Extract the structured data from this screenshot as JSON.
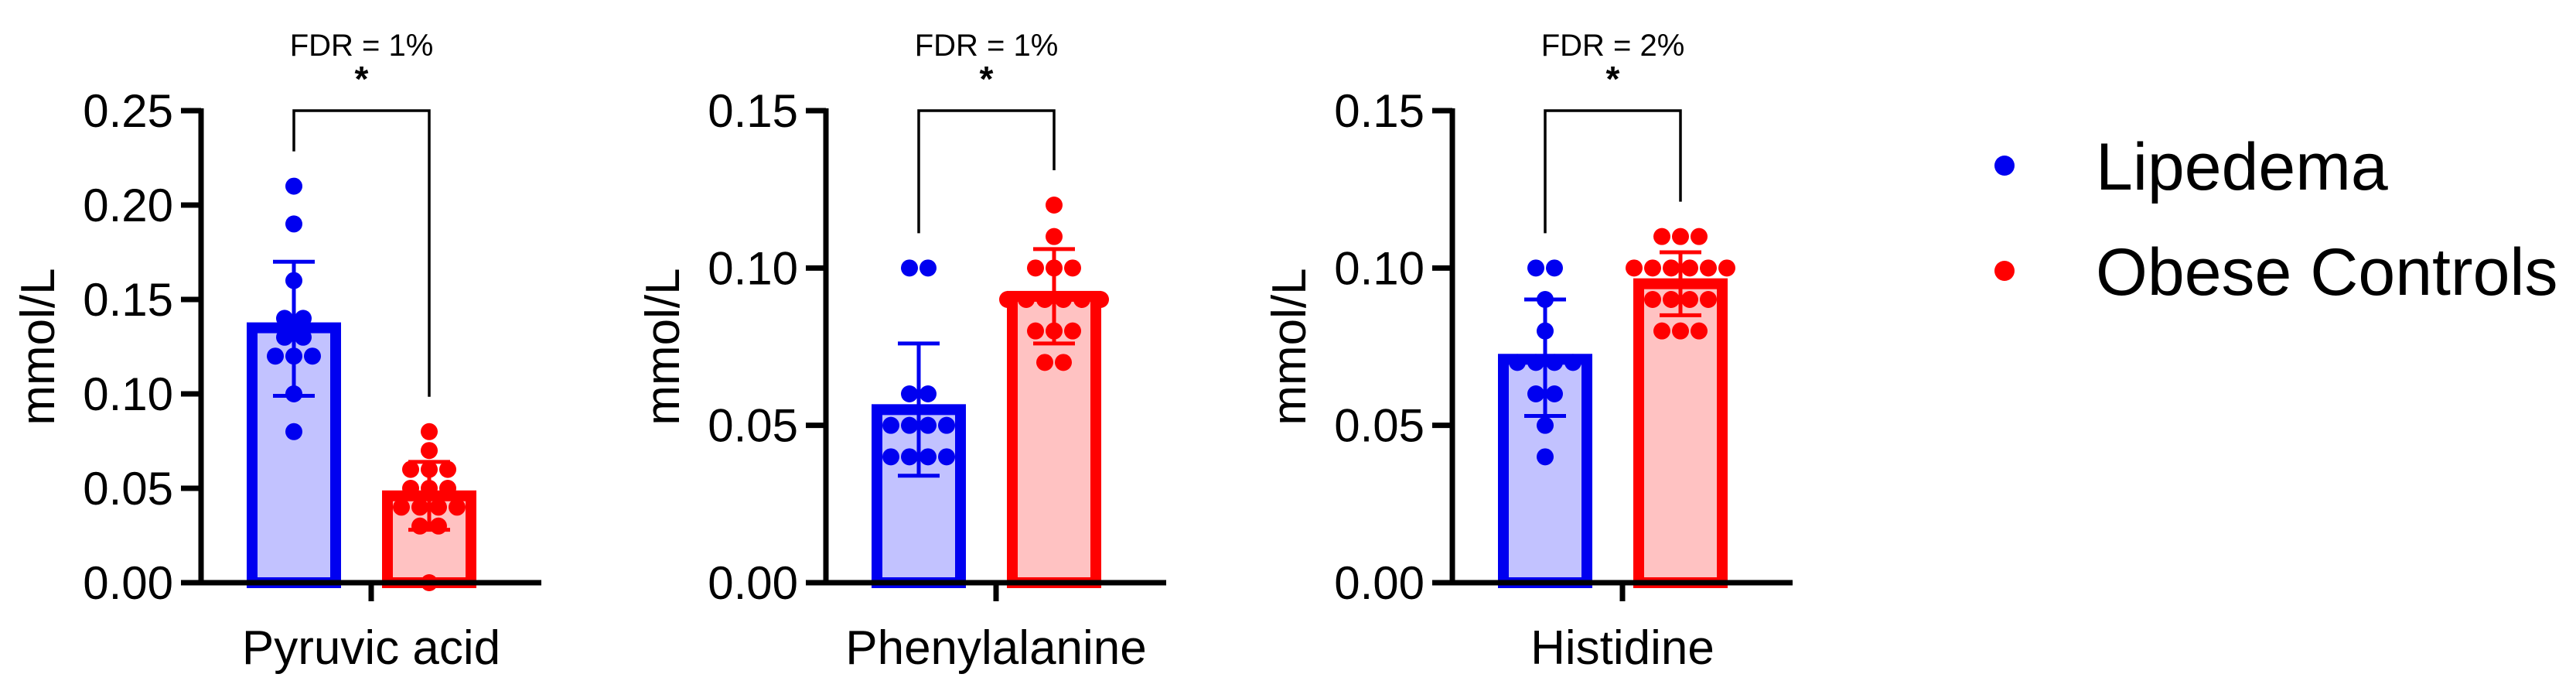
{
  "colors": {
    "lipedema_stroke": "#0000f0",
    "lipedema_fill": "#c2c2ff",
    "obese_stroke": "#ff0000",
    "obese_fill": "#ffc2c2"
  },
  "legend": {
    "items": [
      {
        "label": "Lipedema",
        "color": "#0000f0"
      },
      {
        "label": "Obese Controls",
        "color": "#ff0000"
      }
    ]
  },
  "chart_data": [
    {
      "type": "bar",
      "xlabel": "Pyruvic acid",
      "ylabel": "mmol/L",
      "ylim": [
        0,
        0.25
      ],
      "yticks": [
        "0.00",
        "0.05",
        "0.10",
        "0.15",
        "0.20",
        "0.25"
      ],
      "annotation": {
        "fdr": "FDR = 1%",
        "significance": "*"
      },
      "series": [
        {
          "name": "Lipedema",
          "mean": 0.135,
          "sd_low": 0.099,
          "sd_high": 0.17,
          "points": [
            0.21,
            0.19,
            0.16,
            0.14,
            0.14,
            0.13,
            0.13,
            0.12,
            0.12,
            0.12,
            0.1,
            0.08
          ]
        },
        {
          "name": "Obese Controls",
          "mean": 0.046,
          "sd_low": 0.028,
          "sd_high": 0.064,
          "points": [
            0.08,
            0.07,
            0.06,
            0.06,
            0.06,
            0.05,
            0.05,
            0.05,
            0.04,
            0.04,
            0.04,
            0.04,
            0.03,
            0.03,
            0.0
          ]
        }
      ]
    },
    {
      "type": "bar",
      "xlabel": "Phenylalanine",
      "ylabel": "mmol/L",
      "ylim": [
        0,
        0.15
      ],
      "yticks": [
        "0.00",
        "0.05",
        "0.10",
        "0.15"
      ],
      "annotation": {
        "fdr": "FDR = 1%",
        "significance": "*"
      },
      "series": [
        {
          "name": "Lipedema",
          "mean": 0.055,
          "sd_low": 0.034,
          "sd_high": 0.076,
          "points": [
            0.1,
            0.1,
            0.06,
            0.06,
            0.05,
            0.05,
            0.05,
            0.05,
            0.04,
            0.04,
            0.04,
            0.04
          ]
        },
        {
          "name": "Obese Controls",
          "mean": 0.091,
          "sd_low": 0.076,
          "sd_high": 0.106,
          "points": [
            0.12,
            0.11,
            0.1,
            0.1,
            0.1,
            0.09,
            0.09,
            0.09,
            0.09,
            0.09,
            0.09,
            0.08,
            0.08,
            0.08,
            0.07,
            0.07
          ]
        }
      ]
    },
    {
      "type": "bar",
      "xlabel": "Histidine",
      "ylabel": "mmol/L",
      "ylim": [
        0,
        0.15
      ],
      "yticks": [
        "0.00",
        "0.05",
        "0.10",
        "0.15"
      ],
      "annotation": {
        "fdr": "FDR = 2%",
        "significance": "*"
      },
      "series": [
        {
          "name": "Lipedema",
          "mean": 0.071,
          "sd_low": 0.053,
          "sd_high": 0.09,
          "points": [
            0.1,
            0.1,
            0.09,
            0.08,
            0.07,
            0.07,
            0.07,
            0.07,
            0.06,
            0.06,
            0.05,
            0.04
          ]
        },
        {
          "name": "Obese Controls",
          "mean": 0.095,
          "sd_low": 0.085,
          "sd_high": 0.105,
          "points": [
            0.11,
            0.11,
            0.11,
            0.1,
            0.1,
            0.1,
            0.1,
            0.1,
            0.1,
            0.09,
            0.09,
            0.09,
            0.09,
            0.08,
            0.08,
            0.08
          ]
        }
      ]
    }
  ]
}
